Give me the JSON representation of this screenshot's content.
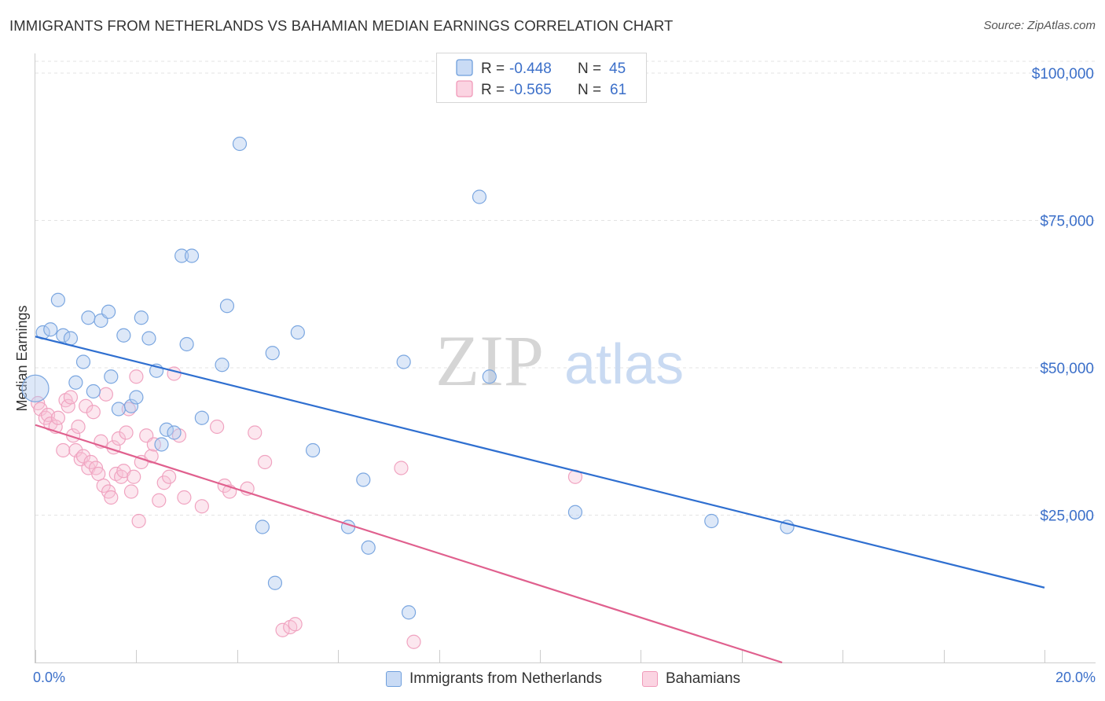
{
  "title": "IMMIGRANTS FROM NETHERLANDS VS BAHAMIAN MEDIAN EARNINGS CORRELATION CHART",
  "source": "Source: ZipAtlas.com",
  "watermark": {
    "zip": "ZIP",
    "atlas": "atlas"
  },
  "colors": {
    "blue": "#6f9fdc",
    "blue_line": "#2f6fd0",
    "pink": "#f09ab9",
    "pink_line": "#e0608e",
    "tick": "#3b6fc9"
  },
  "legend": {
    "rows": [
      {
        "r_label": "R = ",
        "r_value": "-0.448",
        "n_label": "N = ",
        "n_value": "45"
      },
      {
        "r_label": "R = ",
        "r_value": "-0.565",
        "n_label": "N = ",
        "n_value": "61"
      }
    ]
  },
  "chart_data": {
    "type": "scatter",
    "title": "IMMIGRANTS FROM NETHERLANDS VS BAHAMIAN MEDIAN EARNINGS CORRELATION CHART",
    "xlabel": "",
    "ylabel": "Median Earnings",
    "xlim": [
      0,
      20
    ],
    "ylim": [
      0,
      102000
    ],
    "x_tick_labels": [
      "0.0%",
      "20.0%"
    ],
    "y_ticks": [
      25000,
      50000,
      75000,
      100000
    ],
    "y_tick_labels": [
      "$25,000",
      "$50,000",
      "$75,000",
      "$100,000"
    ],
    "grid": true,
    "legend_placement": "top-center",
    "series": [
      {
        "name": "Immigrants from Netherlands",
        "color": "#6f9fdc",
        "trend": {
          "x": [
            0,
            20
          ],
          "y": [
            55300,
            12700
          ]
        },
        "points": [
          [
            0.0,
            46500
          ],
          [
            0.15,
            56000
          ],
          [
            0.3,
            56500
          ],
          [
            0.45,
            61500
          ],
          [
            0.55,
            55500
          ],
          [
            0.7,
            55000
          ],
          [
            0.8,
            47500
          ],
          [
            0.95,
            51000
          ],
          [
            1.15,
            46000
          ],
          [
            1.05,
            58500
          ],
          [
            1.3,
            58000
          ],
          [
            1.45,
            59500
          ],
          [
            1.5,
            48500
          ],
          [
            1.65,
            43000
          ],
          [
            1.75,
            55500
          ],
          [
            1.9,
            43500
          ],
          [
            2.0,
            45000
          ],
          [
            2.1,
            58500
          ],
          [
            2.25,
            55000
          ],
          [
            2.4,
            49500
          ],
          [
            2.5,
            37000
          ],
          [
            2.6,
            39500
          ],
          [
            2.75,
            39000
          ],
          [
            2.9,
            69000
          ],
          [
            3.0,
            54000
          ],
          [
            3.1,
            69000
          ],
          [
            3.3,
            41500
          ],
          [
            3.7,
            50500
          ],
          [
            3.8,
            60500
          ],
          [
            4.05,
            88000
          ],
          [
            4.5,
            23000
          ],
          [
            4.7,
            52500
          ],
          [
            4.75,
            13500
          ],
          [
            5.2,
            56000
          ],
          [
            5.5,
            36000
          ],
          [
            6.2,
            23000
          ],
          [
            6.5,
            31000
          ],
          [
            6.6,
            19500
          ],
          [
            7.3,
            51000
          ],
          [
            7.4,
            8500
          ],
          [
            8.8,
            79000
          ],
          [
            9.0,
            48500
          ],
          [
            10.7,
            25500
          ],
          [
            13.4,
            24000
          ],
          [
            14.9,
            23000
          ]
        ]
      },
      {
        "name": "Bahamians",
        "color": "#f09ab9",
        "trend": {
          "x": [
            0,
            14.8
          ],
          "y": [
            40300,
            0
          ]
        },
        "points": [
          [
            0.05,
            44000
          ],
          [
            0.1,
            43000
          ],
          [
            0.2,
            41500
          ],
          [
            0.25,
            42000
          ],
          [
            0.3,
            40500
          ],
          [
            0.4,
            40000
          ],
          [
            0.45,
            41500
          ],
          [
            0.55,
            36000
          ],
          [
            0.6,
            44500
          ],
          [
            0.65,
            43500
          ],
          [
            0.7,
            45000
          ],
          [
            0.75,
            38500
          ],
          [
            0.8,
            36000
          ],
          [
            0.85,
            40000
          ],
          [
            0.9,
            34500
          ],
          [
            0.95,
            35000
          ],
          [
            1.0,
            43500
          ],
          [
            1.05,
            33000
          ],
          [
            1.1,
            34000
          ],
          [
            1.15,
            42500
          ],
          [
            1.2,
            33000
          ],
          [
            1.25,
            32000
          ],
          [
            1.3,
            37500
          ],
          [
            1.35,
            30000
          ],
          [
            1.4,
            45500
          ],
          [
            1.45,
            29000
          ],
          [
            1.5,
            28000
          ],
          [
            1.55,
            36500
          ],
          [
            1.6,
            32000
          ],
          [
            1.65,
            38000
          ],
          [
            1.7,
            31500
          ],
          [
            1.75,
            32500
          ],
          [
            1.8,
            39000
          ],
          [
            1.85,
            43000
          ],
          [
            1.9,
            29000
          ],
          [
            1.95,
            31500
          ],
          [
            2.0,
            48500
          ],
          [
            2.05,
            24000
          ],
          [
            2.1,
            34000
          ],
          [
            2.2,
            38500
          ],
          [
            2.3,
            35000
          ],
          [
            2.35,
            37000
          ],
          [
            2.45,
            27500
          ],
          [
            2.55,
            30500
          ],
          [
            2.65,
            31500
          ],
          [
            2.75,
            49000
          ],
          [
            2.85,
            38500
          ],
          [
            2.95,
            28000
          ],
          [
            3.3,
            26500
          ],
          [
            3.6,
            40000
          ],
          [
            3.75,
            30000
          ],
          [
            3.85,
            29000
          ],
          [
            4.2,
            29500
          ],
          [
            4.35,
            39000
          ],
          [
            4.55,
            34000
          ],
          [
            4.9,
            5500
          ],
          [
            5.05,
            6000
          ],
          [
            5.15,
            6500
          ],
          [
            7.25,
            33000
          ],
          [
            7.5,
            3500
          ],
          [
            10.7,
            31500
          ]
        ]
      }
    ]
  }
}
